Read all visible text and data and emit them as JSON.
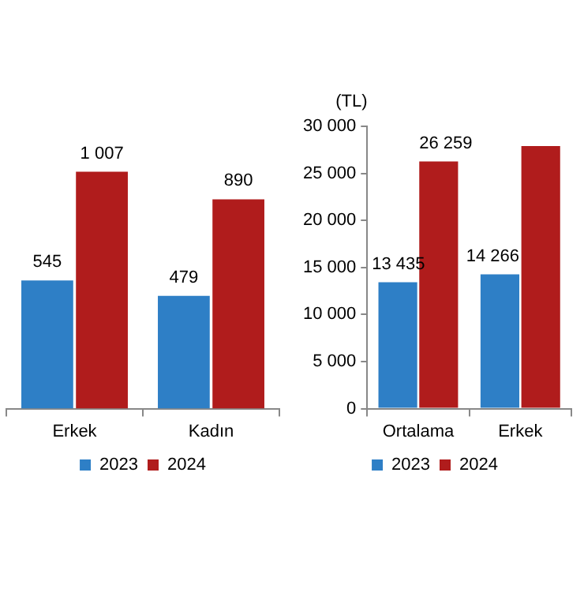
{
  "chart_data": [
    {
      "type": "bar",
      "categories": [
        "Erkek",
        "Kadın"
      ],
      "series": [
        {
          "name": "2023",
          "color": "#2e7fc6",
          "values": [
            545,
            479
          ],
          "value_labels": [
            "545",
            "479"
          ]
        },
        {
          "name": "2024",
          "color": "#b01c1c",
          "values": [
            1007,
            890
          ],
          "value_labels": [
            "1 007",
            "890"
          ]
        }
      ],
      "tick_labels": "x",
      "grid": false,
      "legend": "bottom"
    },
    {
      "type": "bar",
      "ylabel": "(TL)",
      "categories": [
        "Ortalama",
        "Erkek"
      ],
      "series": [
        {
          "name": "2023",
          "color": "#2e7fc6",
          "values": [
            13435,
            14266
          ],
          "value_labels": [
            "13 435",
            "14 266"
          ]
        },
        {
          "name": "2024",
          "color": "#b01c1c",
          "values": [
            26259,
            27900
          ],
          "value_labels": [
            "26 259",
            null
          ]
        }
      ],
      "ylim": [
        0,
        30000
      ],
      "yticks": [
        {
          "value": 0,
          "label": "0"
        },
        {
          "value": 5000,
          "label": "5 000"
        },
        {
          "value": 10000,
          "label": "10 000"
        },
        {
          "value": 15000,
          "label": "15 000"
        },
        {
          "value": 20000,
          "label": "20 000"
        },
        {
          "value": 25000,
          "label": "25 000"
        },
        {
          "value": 30000,
          "label": "30 000"
        }
      ],
      "grid": false,
      "legend": "bottom"
    }
  ]
}
